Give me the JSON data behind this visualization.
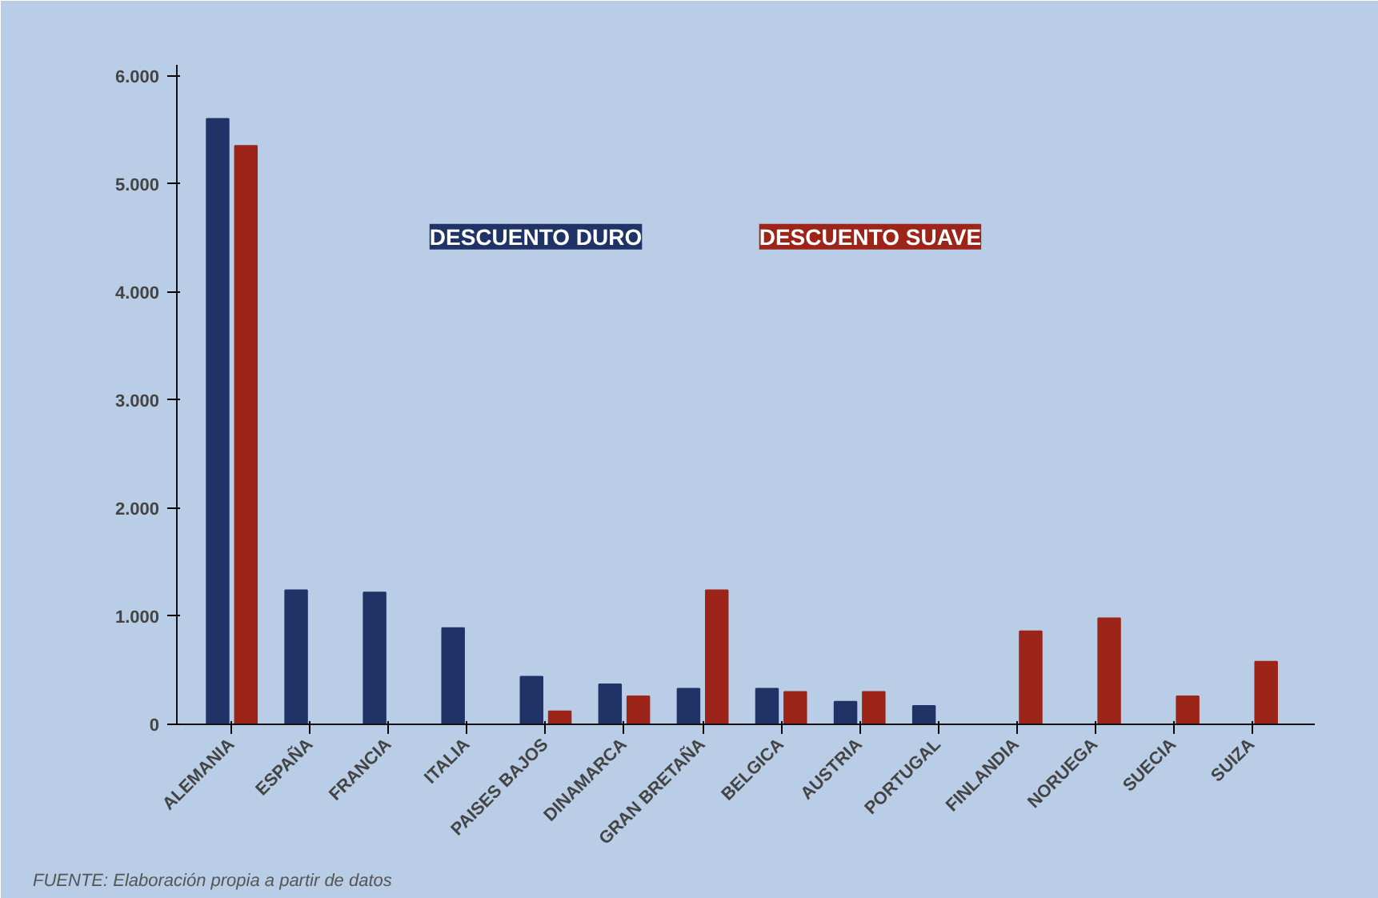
{
  "chart_data": {
    "type": "bar",
    "categories": [
      "ALEMANIA",
      "ESPAÑA",
      "FRANCIA",
      "ITALIA",
      "PAISES BAJOS",
      "DINAMARCA",
      "GRAN BRETAÑA",
      "BELGICA",
      "AUSTRIA",
      "PORTUGAL",
      "FINLANDIA",
      "NORUEGA",
      "SUECIA",
      "SUIZA"
    ],
    "series": [
      {
        "name": "DESCUENTO DURO",
        "color": "#1f3366",
        "values": [
          5600,
          1240,
          1220,
          890,
          440,
          370,
          330,
          330,
          210,
          170,
          0,
          0,
          0,
          0
        ]
      },
      {
        "name": "DESCUENTO SUAVE",
        "color": "#9c2418",
        "values": [
          5350,
          0,
          0,
          0,
          120,
          260,
          1240,
          300,
          300,
          0,
          860,
          980,
          260,
          580
        ]
      }
    ],
    "ylim": [
      0,
      6100
    ],
    "yticks": [
      {
        "value": 0,
        "label": "0"
      },
      {
        "value": 1000,
        "label": "1.000"
      },
      {
        "value": 2000,
        "label": "2.000"
      },
      {
        "value": 3000,
        "label": "3.000"
      },
      {
        "value": 4000,
        "label": "4.000"
      },
      {
        "value": 5000,
        "label": "5.000"
      },
      {
        "value": 6000,
        "label": "6.000"
      }
    ],
    "grid": false,
    "legend": "top",
    "annotations": [
      "FUENTE: Elaboración propia a partir de datos"
    ]
  }
}
